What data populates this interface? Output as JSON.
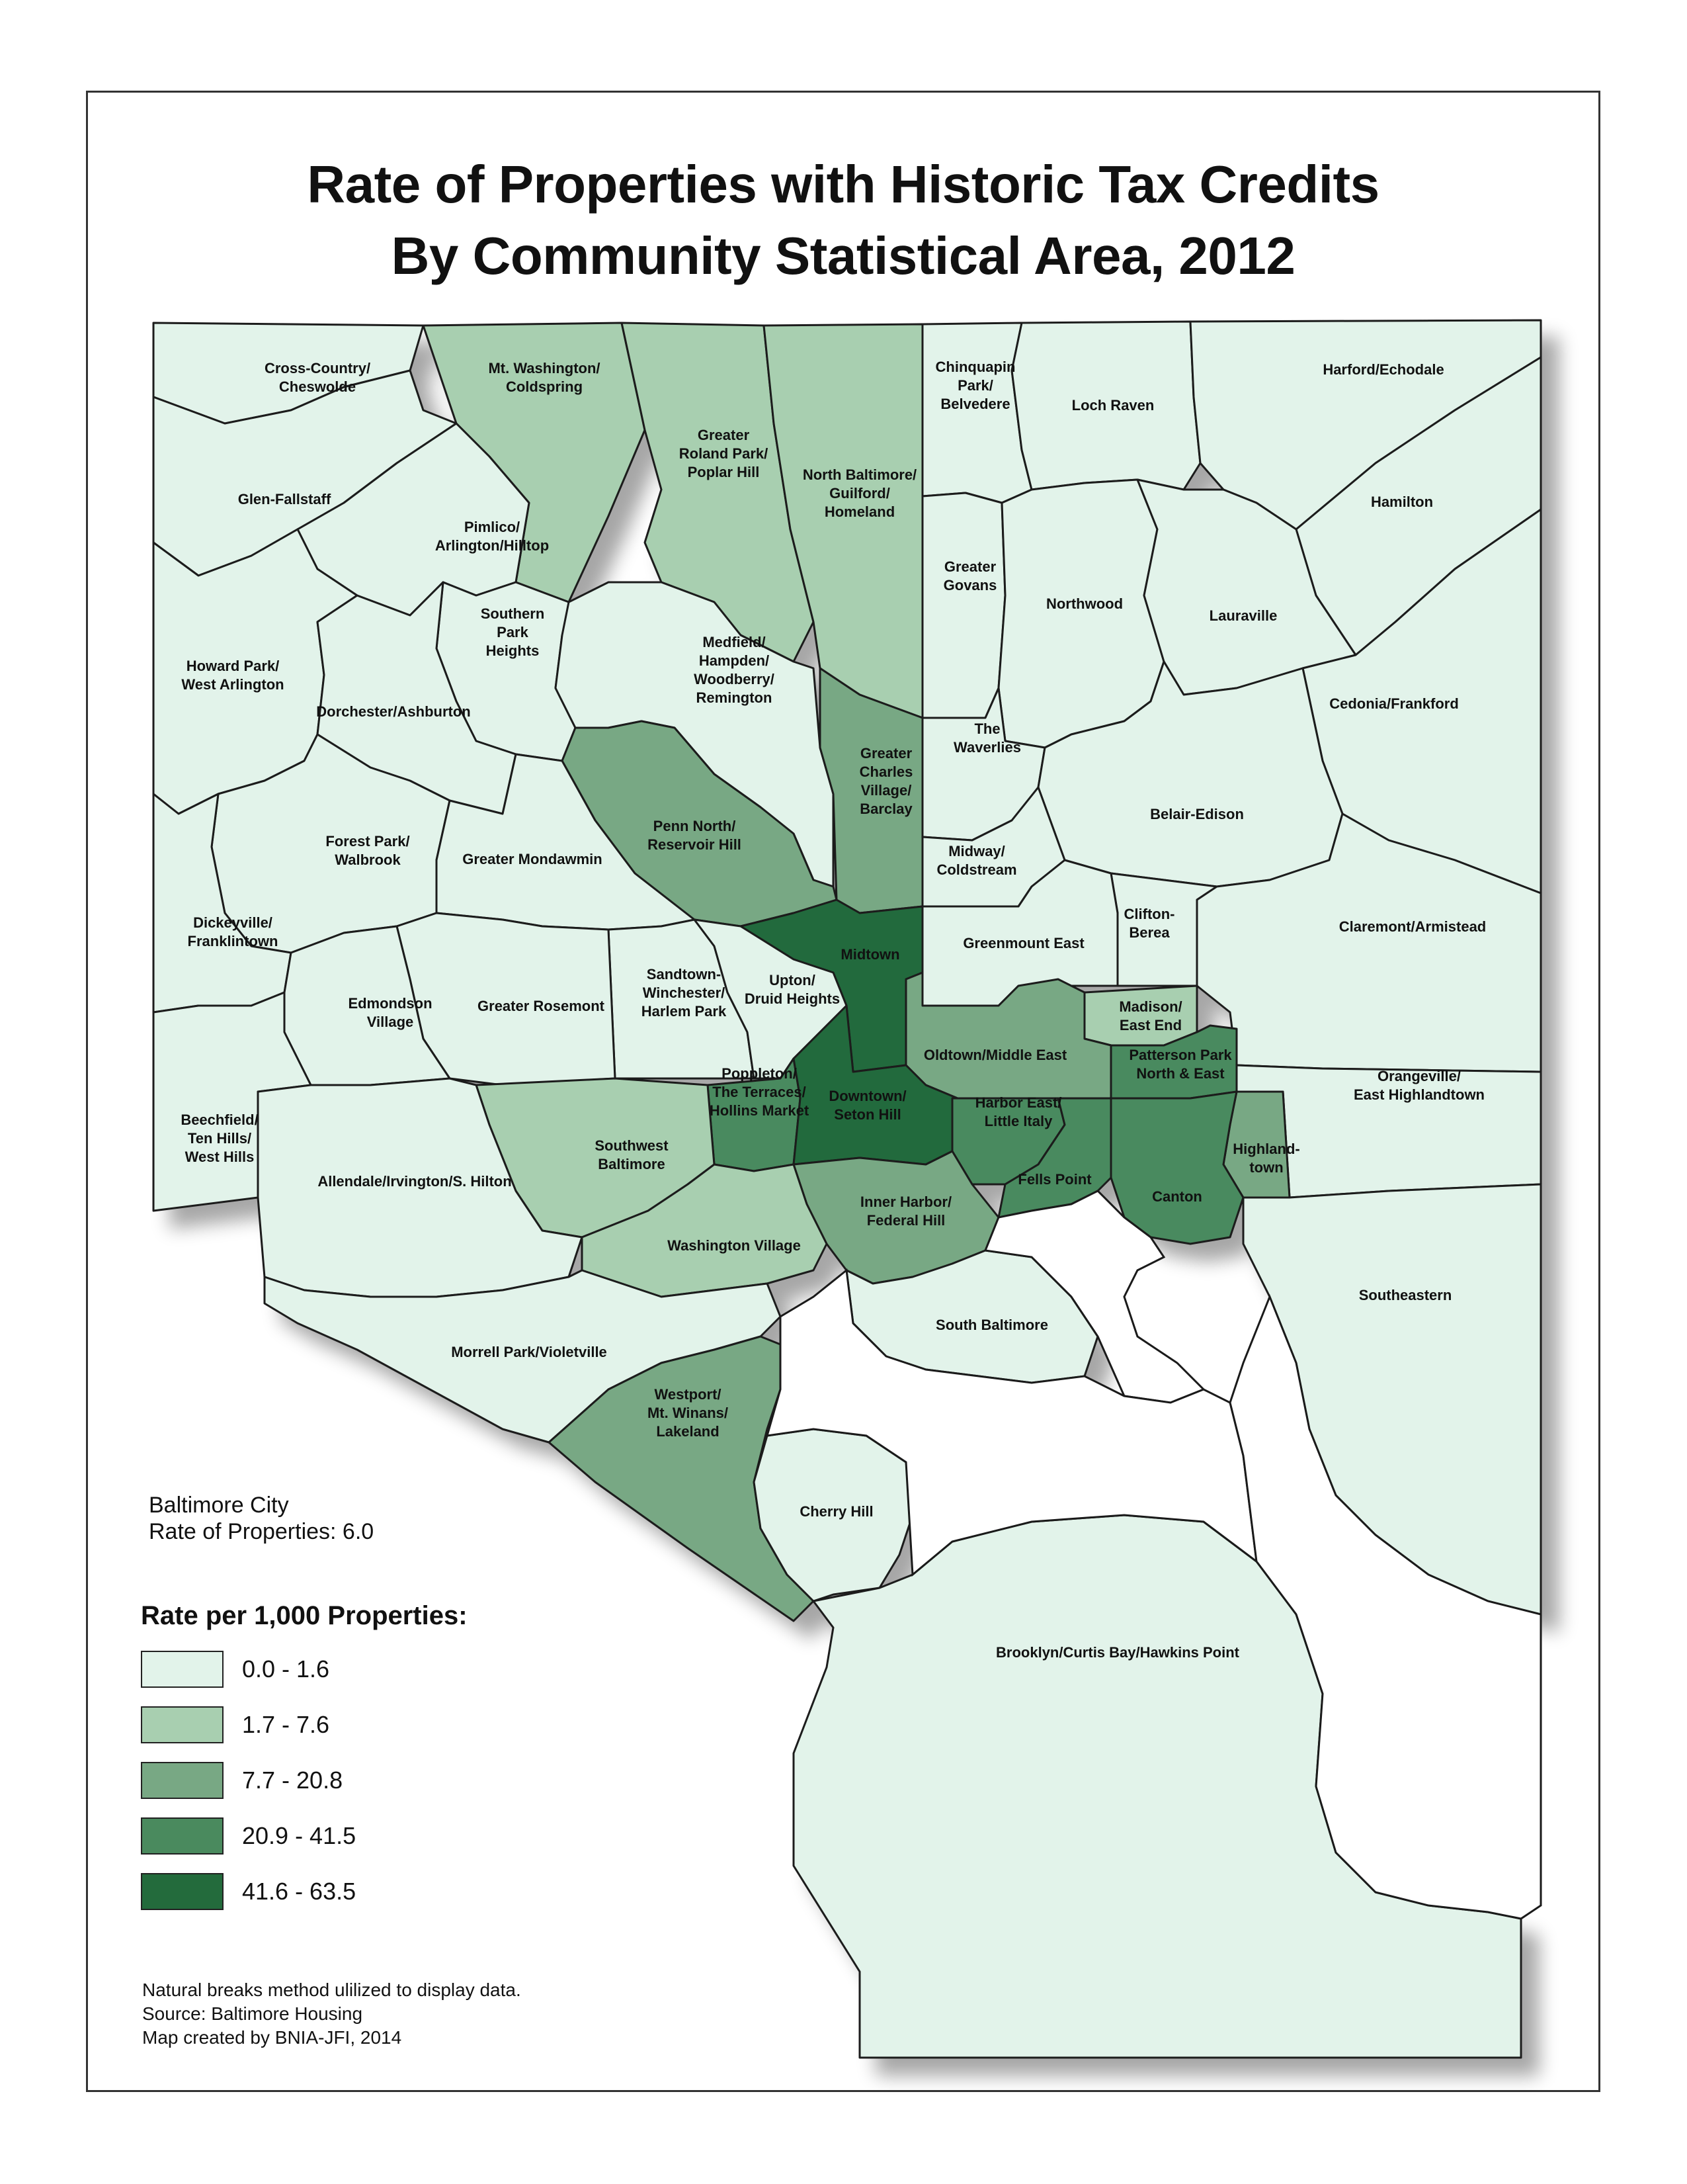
{
  "title": {
    "line1": "Rate of Properties with Historic Tax Credits",
    "line2": "By Community Statistical Area, 2012"
  },
  "colors": {
    "class1": "#e2f3ea",
    "class2": "#a8cfb0",
    "class3": "#78a884",
    "class4": "#4a8a5e",
    "class5": "#236b3c",
    "water": "#ffffff",
    "outline": "#1a1a1a"
  },
  "city_summary": {
    "name": "Baltimore City",
    "rate_text": "Rate of Properties: 6.0"
  },
  "legend": {
    "title": "Rate per 1,000 Properties:",
    "items": [
      {
        "label": "0.0 - 1.6",
        "color": "#e2f3ea"
      },
      {
        "label": "1.7 - 7.6",
        "color": "#a8cfb0"
      },
      {
        "label": "7.7 - 20.8",
        "color": "#78a884"
      },
      {
        "label": "20.9 - 41.5",
        "color": "#4a8a5e"
      },
      {
        "label": "41.6 - 63.5",
        "color": "#236b3c"
      }
    ]
  },
  "notes": [
    "Natural breaks method ulilized to display data.",
    "Source: Baltimore Housing",
    "Map created by BNIA-JFI, 2014"
  ],
  "areas": [
    {
      "name": "Cross-Country/Cheswolde",
      "label": [
        "Cross-Country/",
        "Cheswolde"
      ],
      "class": 1
    },
    {
      "name": "Mt. Washington/Coldspring",
      "label": [
        "Mt. Washington/",
        "Coldspring"
      ],
      "class": 2
    },
    {
      "name": "Greater Roland Park/Poplar Hill",
      "label": [
        "Greater",
        "Roland Park/",
        "Poplar Hill"
      ],
      "class": 2
    },
    {
      "name": "North Baltimore/Guilford/Homeland",
      "label": [
        "North Baltimore/",
        "Guilford/",
        "Homeland"
      ],
      "class": 2
    },
    {
      "name": "Chinquapin Park/Belvedere",
      "label": [
        "Chinquapin",
        "Park/",
        "Belvedere"
      ],
      "class": 1
    },
    {
      "name": "Loch Raven",
      "label": [
        "Loch Raven"
      ],
      "class": 1
    },
    {
      "name": "Harford/Echodale",
      "label": [
        "Harford/Echodale"
      ],
      "class": 1
    },
    {
      "name": "Hamilton",
      "label": [
        "Hamilton"
      ],
      "class": 1
    },
    {
      "name": "Glen-Fallstaff",
      "label": [
        "Glen-Fallstaff"
      ],
      "class": 1
    },
    {
      "name": "Pimlico/Arlington/Hilltop",
      "label": [
        "Pimlico/",
        "Arlington/Hilltop"
      ],
      "class": 1
    },
    {
      "name": "Greater Govans",
      "label": [
        "Greater",
        "Govans"
      ],
      "class": 1
    },
    {
      "name": "Northwood",
      "label": [
        "Northwood"
      ],
      "class": 1
    },
    {
      "name": "Lauraville",
      "label": [
        "Lauraville"
      ],
      "class": 1
    },
    {
      "name": "Southern Park Heights",
      "label": [
        "Southern",
        "Park",
        "Heights"
      ],
      "class": 1
    },
    {
      "name": "Howard Park/West Arlington",
      "label": [
        "Howard Park/",
        "West Arlington"
      ],
      "class": 1
    },
    {
      "name": "Medfield/Hampden/Woodberry/Remington",
      "label": [
        "Medfield/",
        "Hampden/",
        "Woodberry/",
        "Remington"
      ],
      "class": 1
    },
    {
      "name": "Dorchester/Ashburton",
      "label": [
        "Dorchester/Ashburton"
      ],
      "class": 1
    },
    {
      "name": "Cedonia/Frankford",
      "label": [
        "Cedonia/Frankford"
      ],
      "class": 1
    },
    {
      "name": "The Waverlies",
      "label": [
        "The",
        "Waverlies"
      ],
      "class": 1
    },
    {
      "name": "Greater Charles Village/Barclay",
      "label": [
        "Greater",
        "Charles",
        "Village/",
        "Barclay"
      ],
      "class": 3
    },
    {
      "name": "Belair-Edison",
      "label": [
        "Belair-Edison"
      ],
      "class": 1
    },
    {
      "name": "Penn North/Reservoir Hill",
      "label": [
        "Penn North/",
        "Reservoir Hill"
      ],
      "class": 3
    },
    {
      "name": "Forest Park/Walbrook",
      "label": [
        "Forest Park/",
        "Walbrook"
      ],
      "class": 1
    },
    {
      "name": "Greater Mondawmin",
      "label": [
        "Greater Mondawmin"
      ],
      "class": 1
    },
    {
      "name": "Midway/Coldstream",
      "label": [
        "Midway/",
        "Coldstream"
      ],
      "class": 1
    },
    {
      "name": "Dickeyville/Franklintown",
      "label": [
        "Dickeyville/",
        "Franklintown"
      ],
      "class": 1
    },
    {
      "name": "Clifton-Berea",
      "label": [
        "Clifton-",
        "Berea"
      ],
      "class": 1
    },
    {
      "name": "Claremont/Armistead",
      "label": [
        "Claremont/Armistead"
      ],
      "class": 1
    },
    {
      "name": "Midtown",
      "label": [
        "Midtown"
      ],
      "class": 5
    },
    {
      "name": "Greenmount East",
      "label": [
        "Greenmount East"
      ],
      "class": 1
    },
    {
      "name": "Sandtown-Winchester/Harlem Park",
      "label": [
        "Sandtown-",
        "Winchester/",
        "Harlem Park"
      ],
      "class": 1
    },
    {
      "name": "Upton/Druid Heights",
      "label": [
        "Upton/",
        "Druid Heights"
      ],
      "class": 1
    },
    {
      "name": "Greater Rosemont",
      "label": [
        "Greater Rosemont"
      ],
      "class": 1
    },
    {
      "name": "Edmondson Village",
      "label": [
        "Edmondson",
        "Village"
      ],
      "class": 1
    },
    {
      "name": "Madison/East End",
      "label": [
        "Madison/",
        "East End"
      ],
      "class": 2
    },
    {
      "name": "Oldtown/Middle East",
      "label": [
        "Oldtown/Middle East"
      ],
      "class": 3
    },
    {
      "name": "Patterson Park North & East",
      "label": [
        "Patterson Park",
        "North & East"
      ],
      "class": 4
    },
    {
      "name": "Orangeville/East Highlandtown",
      "label": [
        "Orangeville/",
        "East Highlandtown"
      ],
      "class": 1
    },
    {
      "name": "Poppleton/The Terraces/Hollins Market",
      "label": [
        "Poppleton/",
        "The Terraces/",
        "Hollins Market"
      ],
      "class": 4
    },
    {
      "name": "Downtown/Seton Hill",
      "label": [
        "Downtown/",
        "Seton Hill"
      ],
      "class": 5
    },
    {
      "name": "Harbor East/Little Italy",
      "label": [
        "Harbor East/",
        "Little Italy"
      ],
      "class": 4
    },
    {
      "name": "Beechfield/Ten Hills/West Hills",
      "label": [
        "Beechfield/",
        "Ten Hills/",
        "West Hills"
      ],
      "class": 1
    },
    {
      "name": "Southwest Baltimore",
      "label": [
        "Southwest",
        "Baltimore"
      ],
      "class": 2
    },
    {
      "name": "Highlandtown",
      "label": [
        "Highland-",
        "town"
      ],
      "class": 3
    },
    {
      "name": "Allendale/Irvington/S. Hilton",
      "label": [
        "Allendale/Irvington/S. Hilton"
      ],
      "class": 1
    },
    {
      "name": "Fells Point",
      "label": [
        "Fells Point"
      ],
      "class": 4
    },
    {
      "name": "Canton",
      "label": [
        "Canton"
      ],
      "class": 4
    },
    {
      "name": "Inner Harbor/Federal Hill",
      "label": [
        "Inner Harbor/",
        "Federal Hill"
      ],
      "class": 3
    },
    {
      "name": "Washington Village",
      "label": [
        "Washington Village"
      ],
      "class": 2
    },
    {
      "name": "Southeastern",
      "label": [
        "Southeastern"
      ],
      "class": 1
    },
    {
      "name": "South Baltimore",
      "label": [
        "South Baltimore"
      ],
      "class": 1
    },
    {
      "name": "Morrell Park/Violetville",
      "label": [
        "Morrell Park/Violetville"
      ],
      "class": 1
    },
    {
      "name": "Westport/Mt. Winans/Lakeland",
      "label": [
        "Westport/",
        "Mt. Winans/",
        "Lakeland"
      ],
      "class": 3
    },
    {
      "name": "Cherry Hill",
      "label": [
        "Cherry Hill"
      ],
      "class": 1
    },
    {
      "name": "Brooklyn/Curtis Bay/Hawkins Point",
      "label": [
        "Brooklyn/Curtis Bay/Hawkins Point"
      ],
      "class": 1
    }
  ]
}
